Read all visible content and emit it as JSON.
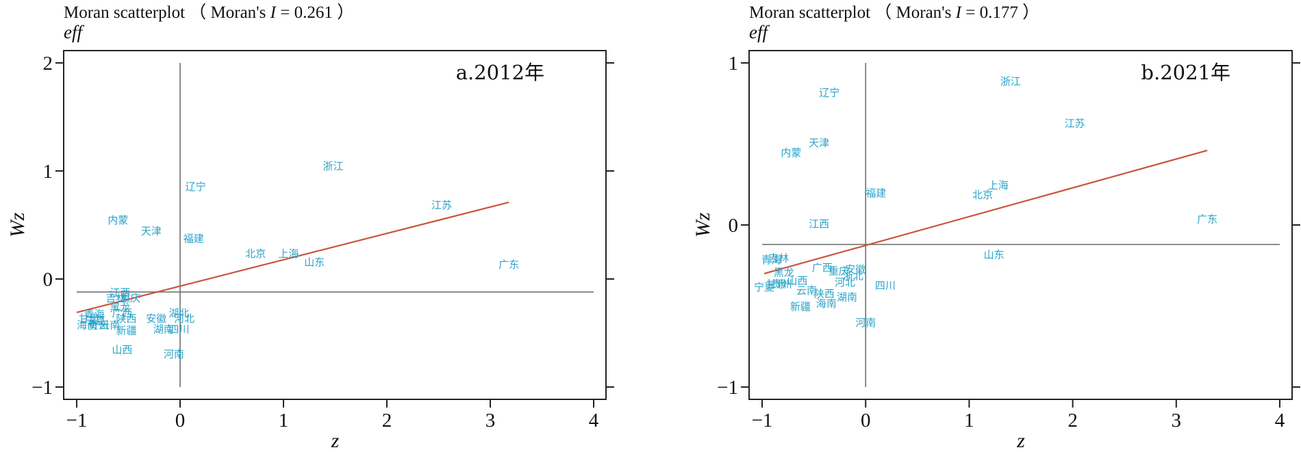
{
  "chart_data": [
    {
      "type": "scatter",
      "title": "Moran scatterplot （ Moran's ",
      "title_stat_symbol": "I",
      "title_stat_value": " = 0.261 ）",
      "y_top_label": "eff",
      "xlabel": "z",
      "ylabel": "Wz",
      "panel_label": "a.2012年",
      "xlim": [
        -1,
        4
      ],
      "ylim": [
        -1,
        2
      ],
      "xticks": [
        "−1",
        "0",
        "1",
        "2",
        "3",
        "4"
      ],
      "xtick_values": [
        -1,
        0,
        1,
        2,
        3,
        4
      ],
      "yticks": [
        "−1",
        "0",
        "1",
        "2"
      ],
      "ytick_values": [
        -1,
        0,
        1,
        2
      ],
      "mean_x": 0,
      "mean_y": -0.12,
      "fit_line": {
        "x": [
          -1.0,
          3.18
        ],
        "y": [
          -0.31,
          0.71
        ],
        "color": "#c8553d"
      },
      "point_color": "#2aa3c9",
      "points": [
        {
          "label": "浙江",
          "x": 1.48,
          "y": 1.05
        },
        {
          "label": "辽宁",
          "x": 0.15,
          "y": 0.86
        },
        {
          "label": "江苏",
          "x": 2.53,
          "y": 0.69
        },
        {
          "label": "内蒙",
          "x": -0.6,
          "y": 0.55
        },
        {
          "label": "天津",
          "x": -0.28,
          "y": 0.45
        },
        {
          "label": "福建",
          "x": 0.13,
          "y": 0.38
        },
        {
          "label": "北京",
          "x": 0.73,
          "y": 0.24
        },
        {
          "label": "上海",
          "x": 1.05,
          "y": 0.24
        },
        {
          "label": "山东",
          "x": 1.3,
          "y": 0.16
        },
        {
          "label": "广东",
          "x": 3.18,
          "y": 0.14
        },
        {
          "label": "江西",
          "x": -0.58,
          "y": -0.12
        },
        {
          "label": "吉林",
          "x": -0.62,
          "y": -0.17
        },
        {
          "label": "重庆",
          "x": -0.48,
          "y": -0.17
        },
        {
          "label": "黑龙",
          "x": -0.58,
          "y": -0.26
        },
        {
          "label": "广西",
          "x": -0.56,
          "y": -0.31
        },
        {
          "label": "青海",
          "x": -0.83,
          "y": -0.32
        },
        {
          "label": "甘肃",
          "x": -0.88,
          "y": -0.36
        },
        {
          "label": "宁夏",
          "x": -0.82,
          "y": -0.38
        },
        {
          "label": "陕西",
          "x": -0.52,
          "y": -0.36
        },
        {
          "label": "安徽",
          "x": -0.23,
          "y": -0.36
        },
        {
          "label": "湖北",
          "x": -0.01,
          "y": -0.31
        },
        {
          "label": "河北",
          "x": 0.04,
          "y": -0.36
        },
        {
          "label": "海南",
          "x": -0.9,
          "y": -0.42
        },
        {
          "label": "云南",
          "x": -0.68,
          "y": -0.42
        },
        {
          "label": "贵州",
          "x": -0.79,
          "y": -0.42
        },
        {
          "label": "新疆",
          "x": -0.52,
          "y": -0.47
        },
        {
          "label": "湖南",
          "x": -0.16,
          "y": -0.46
        },
        {
          "label": "四川",
          "x": -0.01,
          "y": -0.46
        },
        {
          "label": "山西",
          "x": -0.56,
          "y": -0.65
        },
        {
          "label": "河南",
          "x": -0.06,
          "y": -0.69
        }
      ]
    },
    {
      "type": "scatter",
      "title": "Moran scatterplot （ Moran's ",
      "title_stat_symbol": "I",
      "title_stat_value": " = 0.177 ）",
      "y_top_label": "eff",
      "xlabel": "z",
      "ylabel": "Wz",
      "panel_label": "b.2021年",
      "xlim": [
        -1,
        4
      ],
      "ylim": [
        -1,
        1
      ],
      "xticks": [
        "−1",
        "0",
        "1",
        "2",
        "3",
        "4"
      ],
      "xtick_values": [
        -1,
        0,
        1,
        2,
        3,
        4
      ],
      "yticks": [
        "−1",
        "0",
        "1"
      ],
      "ytick_values": [
        -1,
        0,
        1
      ],
      "mean_x": 0,
      "mean_y": -0.12,
      "fit_line": {
        "x": [
          -0.98,
          3.3
        ],
        "y": [
          -0.3,
          0.46
        ],
        "color": "#c8553d"
      },
      "point_color": "#2aa3c9",
      "points": [
        {
          "label": "浙江",
          "x": 1.4,
          "y": 0.89
        },
        {
          "label": "辽宁",
          "x": -0.35,
          "y": 0.82
        },
        {
          "label": "江苏",
          "x": 2.02,
          "y": 0.63
        },
        {
          "label": "天津",
          "x": -0.45,
          "y": 0.51
        },
        {
          "label": "内蒙",
          "x": -0.72,
          "y": 0.45
        },
        {
          "label": "上海",
          "x": 1.28,
          "y": 0.25
        },
        {
          "label": "福建",
          "x": 0.1,
          "y": 0.2
        },
        {
          "label": "北京",
          "x": 1.13,
          "y": 0.19
        },
        {
          "label": "江西",
          "x": -0.45,
          "y": 0.01
        },
        {
          "label": "广东",
          "x": 3.3,
          "y": 0.04
        },
        {
          "label": "山东",
          "x": 1.24,
          "y": -0.18
        },
        {
          "label": "吉林",
          "x": -0.84,
          "y": -0.2
        },
        {
          "label": "青海",
          "x": -0.91,
          "y": -0.21
        },
        {
          "label": "广西",
          "x": -0.42,
          "y": -0.26
        },
        {
          "label": "重庆",
          "x": -0.26,
          "y": -0.28
        },
        {
          "label": "安徽",
          "x": -0.1,
          "y": -0.27
        },
        {
          "label": "浙北",
          "x": -0.12,
          "y": -0.31
        },
        {
          "label": "黑龙",
          "x": -0.79,
          "y": -0.29
        },
        {
          "label": "山西",
          "x": -0.66,
          "y": -0.34
        },
        {
          "label": "甘肃",
          "x": -0.86,
          "y": -0.36
        },
        {
          "label": "贵州",
          "x": -0.81,
          "y": -0.36
        },
        {
          "label": "河北",
          "x": -0.2,
          "y": -0.35
        },
        {
          "label": "四川",
          "x": 0.19,
          "y": -0.37
        },
        {
          "label": "宁夏",
          "x": -0.98,
          "y": -0.38
        },
        {
          "label": "云南",
          "x": -0.57,
          "y": -0.4
        },
        {
          "label": "陕西",
          "x": -0.4,
          "y": -0.42
        },
        {
          "label": "湖南",
          "x": -0.18,
          "y": -0.44
        },
        {
          "label": "海南",
          "x": -0.38,
          "y": -0.48
        },
        {
          "label": "新疆",
          "x": -0.63,
          "y": -0.5
        },
        {
          "label": "河南",
          "x": 0.0,
          "y": -0.6
        }
      ]
    }
  ]
}
